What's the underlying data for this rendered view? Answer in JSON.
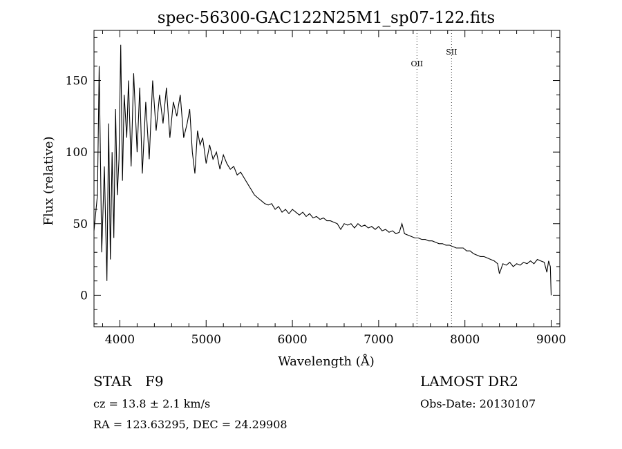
{
  "chart_data": {
    "type": "line",
    "title": "spec-56300-GAC122N25M1_sp07-122.fits",
    "xlabel": "Wavelength (Å)",
    "ylabel": "Flux (relative)",
    "xlim": [
      3700,
      9100
    ],
    "ylim": [
      -22,
      185
    ],
    "xticks": [
      4000,
      5000,
      6000,
      7000,
      8000,
      9000
    ],
    "yticks": [
      0,
      50,
      100,
      150
    ],
    "grid": false,
    "series": [
      {
        "x": [
          3700,
          3740,
          3760,
          3790,
          3820,
          3850,
          3870,
          3890,
          3910,
          3930,
          3950,
          3970,
          3990,
          4010,
          4030,
          4050,
          4080,
          4100,
          4130,
          4160,
          4200,
          4230,
          4260,
          4300,
          4340,
          4380,
          4420,
          4460,
          4500,
          4540,
          4580,
          4620,
          4660,
          4700,
          4740,
          4780,
          4810,
          4840,
          4870,
          4900,
          4930,
          4960,
          5000,
          5040,
          5080,
          5120,
          5160,
          5200,
          5240,
          5280,
          5320,
          5360,
          5400,
          5440,
          5480,
          5520,
          5560,
          5600,
          5640,
          5680,
          5720,
          5760,
          5800,
          5840,
          5880,
          5920,
          5960,
          6000,
          6040,
          6080,
          6120,
          6160,
          6200,
          6240,
          6280,
          6320,
          6360,
          6400,
          6440,
          6480,
          6520,
          6560,
          6600,
          6640,
          6680,
          6720,
          6760,
          6800,
          6840,
          6880,
          6920,
          6960,
          7000,
          7040,
          7080,
          7120,
          7160,
          7200,
          7240,
          7270,
          7300,
          7340,
          7380,
          7420,
          7460,
          7500,
          7540,
          7580,
          7620,
          7660,
          7700,
          7740,
          7780,
          7820,
          7860,
          7900,
          7940,
          7980,
          8020,
          8060,
          8100,
          8140,
          8180,
          8220,
          8260,
          8300,
          8340,
          8380,
          8400,
          8440,
          8480,
          8520,
          8560,
          8600,
          8640,
          8680,
          8720,
          8760,
          8800,
          8840,
          8880,
          8920,
          8950,
          8970,
          8990,
          9000
        ],
        "values": [
          45,
          70,
          160,
          30,
          90,
          10,
          120,
          25,
          100,
          40,
          130,
          70,
          95,
          175,
          80,
          140,
          110,
          150,
          90,
          155,
          100,
          145,
          85,
          135,
          95,
          150,
          115,
          140,
          120,
          145,
          110,
          135,
          125,
          140,
          110,
          120,
          130,
          100,
          85,
          115,
          105,
          110,
          92,
          105,
          95,
          100,
          88,
          98,
          92,
          88,
          90,
          84,
          86,
          82,
          78,
          74,
          70,
          68,
          66,
          64,
          63,
          64,
          60,
          62,
          58,
          60,
          57,
          60,
          58,
          56,
          58,
          55,
          57,
          54,
          55,
          53,
          54,
          52,
          52,
          51,
          50,
          46,
          50,
          49,
          50,
          47,
          50,
          48,
          49,
          47,
          48,
          46,
          48,
          45,
          46,
          44,
          45,
          43,
          44,
          50,
          43,
          42,
          41,
          40,
          40,
          39,
          39,
          38,
          38,
          37,
          36,
          36,
          35,
          35,
          34,
          33,
          33,
          33,
          31,
          31,
          29,
          28,
          27,
          27,
          26,
          25,
          24,
          22,
          15,
          22,
          21,
          23,
          20,
          22,
          21,
          23,
          22,
          24,
          22,
          25,
          24,
          23,
          16,
          24,
          20,
          0
        ]
      }
    ],
    "lines": [
      {
        "label": "OII",
        "x": 7444
      },
      {
        "label": "SII",
        "x": 7845
      }
    ]
  },
  "footer": {
    "object_type": "STAR",
    "subclass": "F9",
    "survey": "LAMOST DR2",
    "cz": "cz = 13.8 ± 2.1 km/s",
    "obs_date": "Obs-Date: 20130107",
    "coords": "RA = 123.63295, DEC =  24.29908"
  }
}
